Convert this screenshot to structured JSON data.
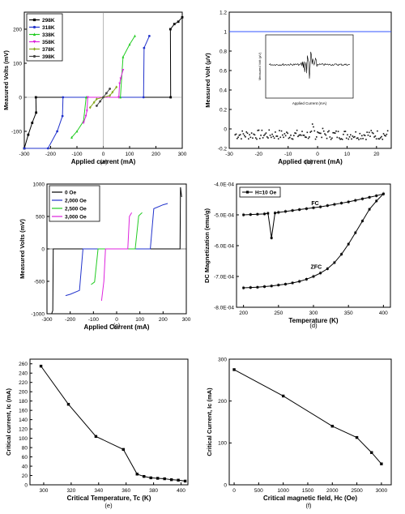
{
  "figure": {
    "panels": [
      "(a)",
      "(b)",
      "(c)",
      "(d)",
      "(e)",
      "(f)"
    ]
  },
  "chart_data": [
    {
      "id": "a",
      "type": "line",
      "panel_label": "(a)",
      "xlabel": "Applied current (mA)",
      "ylabel": "Measured Volts (mV)",
      "xlim": [
        -300,
        300
      ],
      "ylim": [
        -150,
        250
      ],
      "xticks": [
        -300,
        -200,
        -100,
        0,
        100,
        200,
        300
      ],
      "yticks": [
        -100,
        0,
        100,
        200
      ],
      "legend_position": "top-left",
      "series": [
        {
          "name": "298K",
          "color": "#000000",
          "marker": "square",
          "x": [
            -300,
            -285,
            -270,
            -255,
            -256,
            256,
            255,
            270,
            285,
            300
          ],
          "y": [
            -150,
            -110,
            -75,
            -45,
            0,
            0,
            200,
            215,
            222,
            235
          ]
        },
        {
          "name": "318K",
          "color": "#2233cc",
          "marker": "circle",
          "x": [
            -300,
            -210,
            -175,
            -155,
            -153,
            153,
            155,
            175
          ],
          "y": [
            -150,
            -150,
            -100,
            -55,
            0,
            0,
            145,
            180
          ]
        },
        {
          "name": "338K",
          "color": "#22cc22",
          "marker": "triangle",
          "x": [
            -120,
            -100,
            -75,
            -65,
            65,
            75,
            100,
            120
          ],
          "y": [
            -118,
            -100,
            -70,
            0,
            0,
            118,
            155,
            180
          ]
        },
        {
          "name": "358K",
          "color": "#dd22dd",
          "marker": "triangle-down",
          "x": [
            -75,
            -66,
            -62,
            -59,
            59,
            62,
            66,
            75
          ],
          "y": [
            -75,
            -55,
            -40,
            0,
            0,
            40,
            55,
            80
          ]
        },
        {
          "name": "378K",
          "color": "#88aa22",
          "marker": "diamond",
          "x": [
            -50,
            -35,
            -25,
            25,
            35,
            50
          ],
          "y": [
            -30,
            -15,
            -5,
            5,
            15,
            30
          ]
        },
        {
          "name": "398K",
          "color": "#444444",
          "marker": "star",
          "x": [
            -25,
            -12,
            0,
            12,
            25
          ],
          "y": [
            -25,
            -12,
            0,
            12,
            25
          ]
        }
      ]
    },
    {
      "id": "b",
      "type": "scatter",
      "panel_label": "(b)",
      "xlabel": "Applied current (mA)",
      "ylabel": "Measured Volt (μV)",
      "xlim": [
        -30,
        25
      ],
      "ylim": [
        -0.2,
        1.2
      ],
      "xticks": [
        -30,
        -20,
        -10,
        0,
        10,
        20
      ],
      "yticks": [
        -0.2,
        0.0,
        0.2,
        0.4,
        0.6,
        0.8,
        1.0,
        1.2
      ],
      "reference_line": {
        "y": 1.0,
        "color": "#3355ff"
      },
      "noise_band": {
        "x_range": [
          -28,
          24
        ],
        "y_center": -0.06,
        "amplitude": 0.05
      },
      "inset": {
        "xlabel": "Applied Current (mA)",
        "ylabel": "Measured Volt (μV)"
      }
    },
    {
      "id": "c",
      "type": "line",
      "panel_label": "(c)",
      "xlabel": "Applied Current (mA)",
      "ylabel": "Measured Volts (mV)",
      "xlim": [
        -300,
        300
      ],
      "ylim": [
        -1000,
        1000
      ],
      "xticks": [
        -300,
        -200,
        -100,
        0,
        100,
        200,
        300
      ],
      "yticks": [
        -1000,
        -500,
        0,
        500,
        1000
      ],
      "legend_position": "top-left",
      "series": [
        {
          "name": "0 Oe",
          "color": "#000000",
          "x": [
            -280,
            -275,
            -273,
            273,
            275,
            280
          ],
          "y": [
            -1000,
            -950,
            0,
            0,
            950,
            800
          ]
        },
        {
          "name": "2,000 Oe",
          "color": "#2233cc",
          "x": [
            -220,
            -200,
            -160,
            -145,
            145,
            160,
            200,
            220
          ],
          "y": [
            -720,
            -700,
            -640,
            0,
            0,
            620,
            680,
            700
          ]
        },
        {
          "name": "2,500 Oe",
          "color": "#22cc22",
          "x": [
            -110,
            -95,
            -80,
            80,
            95,
            110
          ],
          "y": [
            -550,
            -510,
            0,
            0,
            510,
            560
          ]
        },
        {
          "name": "3,000 Oe",
          "color": "#dd22dd",
          "x": [
            -65,
            -55,
            -48,
            48,
            55,
            65
          ],
          "y": [
            -800,
            -500,
            0,
            0,
            500,
            560
          ]
        }
      ]
    },
    {
      "id": "d",
      "type": "line",
      "panel_label": "(d)",
      "xlabel": "Temperature (K)",
      "ylabel": "DC Magnetization (emu/g)",
      "xlim": [
        190,
        410
      ],
      "ylim": [
        -0.0008,
        -0.0004
      ],
      "xticks": [
        200,
        250,
        300,
        350,
        400
      ],
      "yticks": [
        "-4.0E-04",
        "-5.0E-04",
        "-6.0E-04",
        "-7.0E-04",
        "-8.0E-04"
      ],
      "legend_entries": [
        "H=10 Oe"
      ],
      "legend_position": "top-left",
      "annotations": [
        "FC",
        "ZFC"
      ],
      "series": [
        {
          "name": "FC",
          "color": "#000000",
          "x": [
            200,
            210,
            220,
            230,
            235,
            240,
            245,
            250,
            260,
            270,
            280,
            290,
            300,
            310,
            320,
            330,
            340,
            350,
            360,
            370,
            380,
            390,
            400
          ],
          "y": [
            -0.0005,
            -0.000499,
            -0.000498,
            -0.000497,
            -0.000495,
            -0.000575,
            -0.000494,
            -0.000492,
            -0.000489,
            -0.000486,
            -0.000483,
            -0.00048,
            -0.000477,
            -0.000474,
            -0.00047,
            -0.000466,
            -0.000462,
            -0.000458,
            -0.000453,
            -0.000448,
            -0.000443,
            -0.000438,
            -0.000432
          ]
        },
        {
          "name": "ZFC",
          "color": "#000000",
          "x": [
            200,
            210,
            220,
            230,
            240,
            250,
            260,
            270,
            280,
            290,
            300,
            310,
            320,
            330,
            340,
            350,
            360,
            370,
            380,
            390,
            400
          ],
          "y": [
            -0.000737,
            -0.000736,
            -0.000735,
            -0.000733,
            -0.000731,
            -0.000728,
            -0.000725,
            -0.000721,
            -0.000716,
            -0.000709,
            -0.0007,
            -0.000689,
            -0.000675,
            -0.000655,
            -0.000628,
            -0.000595,
            -0.000558,
            -0.00052,
            -0.000482,
            -0.000455,
            -0.000432
          ]
        }
      ]
    },
    {
      "id": "e",
      "type": "line",
      "panel_label": "(e)",
      "xlabel": "Critical Temperature, Tc (K)",
      "ylabel": "Critical current, Ic (mA)",
      "xlim": [
        290,
        405
      ],
      "ylim": [
        0,
        270
      ],
      "xticks": [
        300,
        320,
        340,
        360,
        380,
        400
      ],
      "yticks": [
        0,
        20,
        40,
        60,
        80,
        100,
        120,
        140,
        160,
        180,
        200,
        220,
        240,
        260
      ],
      "series": [
        {
          "name": "",
          "color": "#000000",
          "x": [
            298,
            318,
            338,
            358,
            368,
            373,
            378,
            383,
            388,
            393,
            398,
            403
          ],
          "y": [
            255,
            173,
            104,
            76,
            23,
            18,
            15,
            14,
            13,
            11,
            10,
            8
          ]
        }
      ]
    },
    {
      "id": "f",
      "type": "line",
      "panel_label": "(f)",
      "xlabel": "Critical magnetic field, Hc (Oe)",
      "ylabel": "Critical Current, Ic (mA)",
      "xlim": [
        -100,
        3200
      ],
      "ylim": [
        0,
        300
      ],
      "xticks": [
        0,
        500,
        1000,
        1500,
        2000,
        2500,
        3000
      ],
      "yticks": [
        0,
        100,
        200,
        300
      ],
      "series": [
        {
          "name": "",
          "color": "#000000",
          "x": [
            0,
            1000,
            2000,
            2500,
            2800,
            3000
          ],
          "y": [
            275,
            212,
            140,
            113,
            77,
            50
          ]
        }
      ]
    }
  ]
}
